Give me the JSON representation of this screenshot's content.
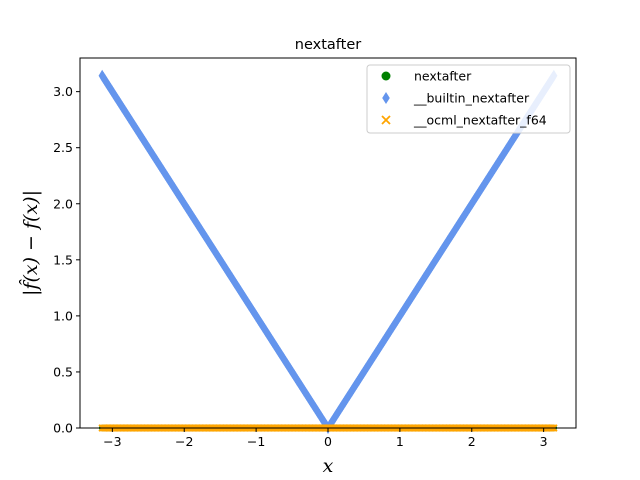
{
  "chart_data": {
    "type": "scatter",
    "title": "nextafter",
    "xlabel": "x",
    "ylabel": "|f̂(x) − f(x)|",
    "xlim": [
      -3.45,
      3.45
    ],
    "ylim": [
      0.0,
      3.3
    ],
    "xticks": [
      -3,
      -2,
      -1,
      0,
      1,
      2,
      3
    ],
    "xtick_labels": [
      "−3",
      "−2",
      "−1",
      "0",
      "1",
      "2",
      "3"
    ],
    "yticks": [
      0.0,
      0.5,
      1.0,
      1.5,
      2.0,
      2.5,
      3.0
    ],
    "ytick_labels": [
      "0.0",
      "0.5",
      "1.0",
      "1.5",
      "2.0",
      "2.5",
      "3.0"
    ],
    "grid": false,
    "legend_position": "top-right",
    "x_range": [
      -3.14159,
      3.14159
    ],
    "series": [
      {
        "name": "nextafter",
        "marker": "circle",
        "color": "#008000",
        "formula": "y = 0"
      },
      {
        "name": "__builtin_nextafter",
        "marker": "diamond",
        "color": "#6495ED",
        "formula": "y = |x|"
      },
      {
        "name": "__ocml_nextafter_f64",
        "marker": "x",
        "color": "#FFA500",
        "formula": "y = 0"
      }
    ]
  }
}
